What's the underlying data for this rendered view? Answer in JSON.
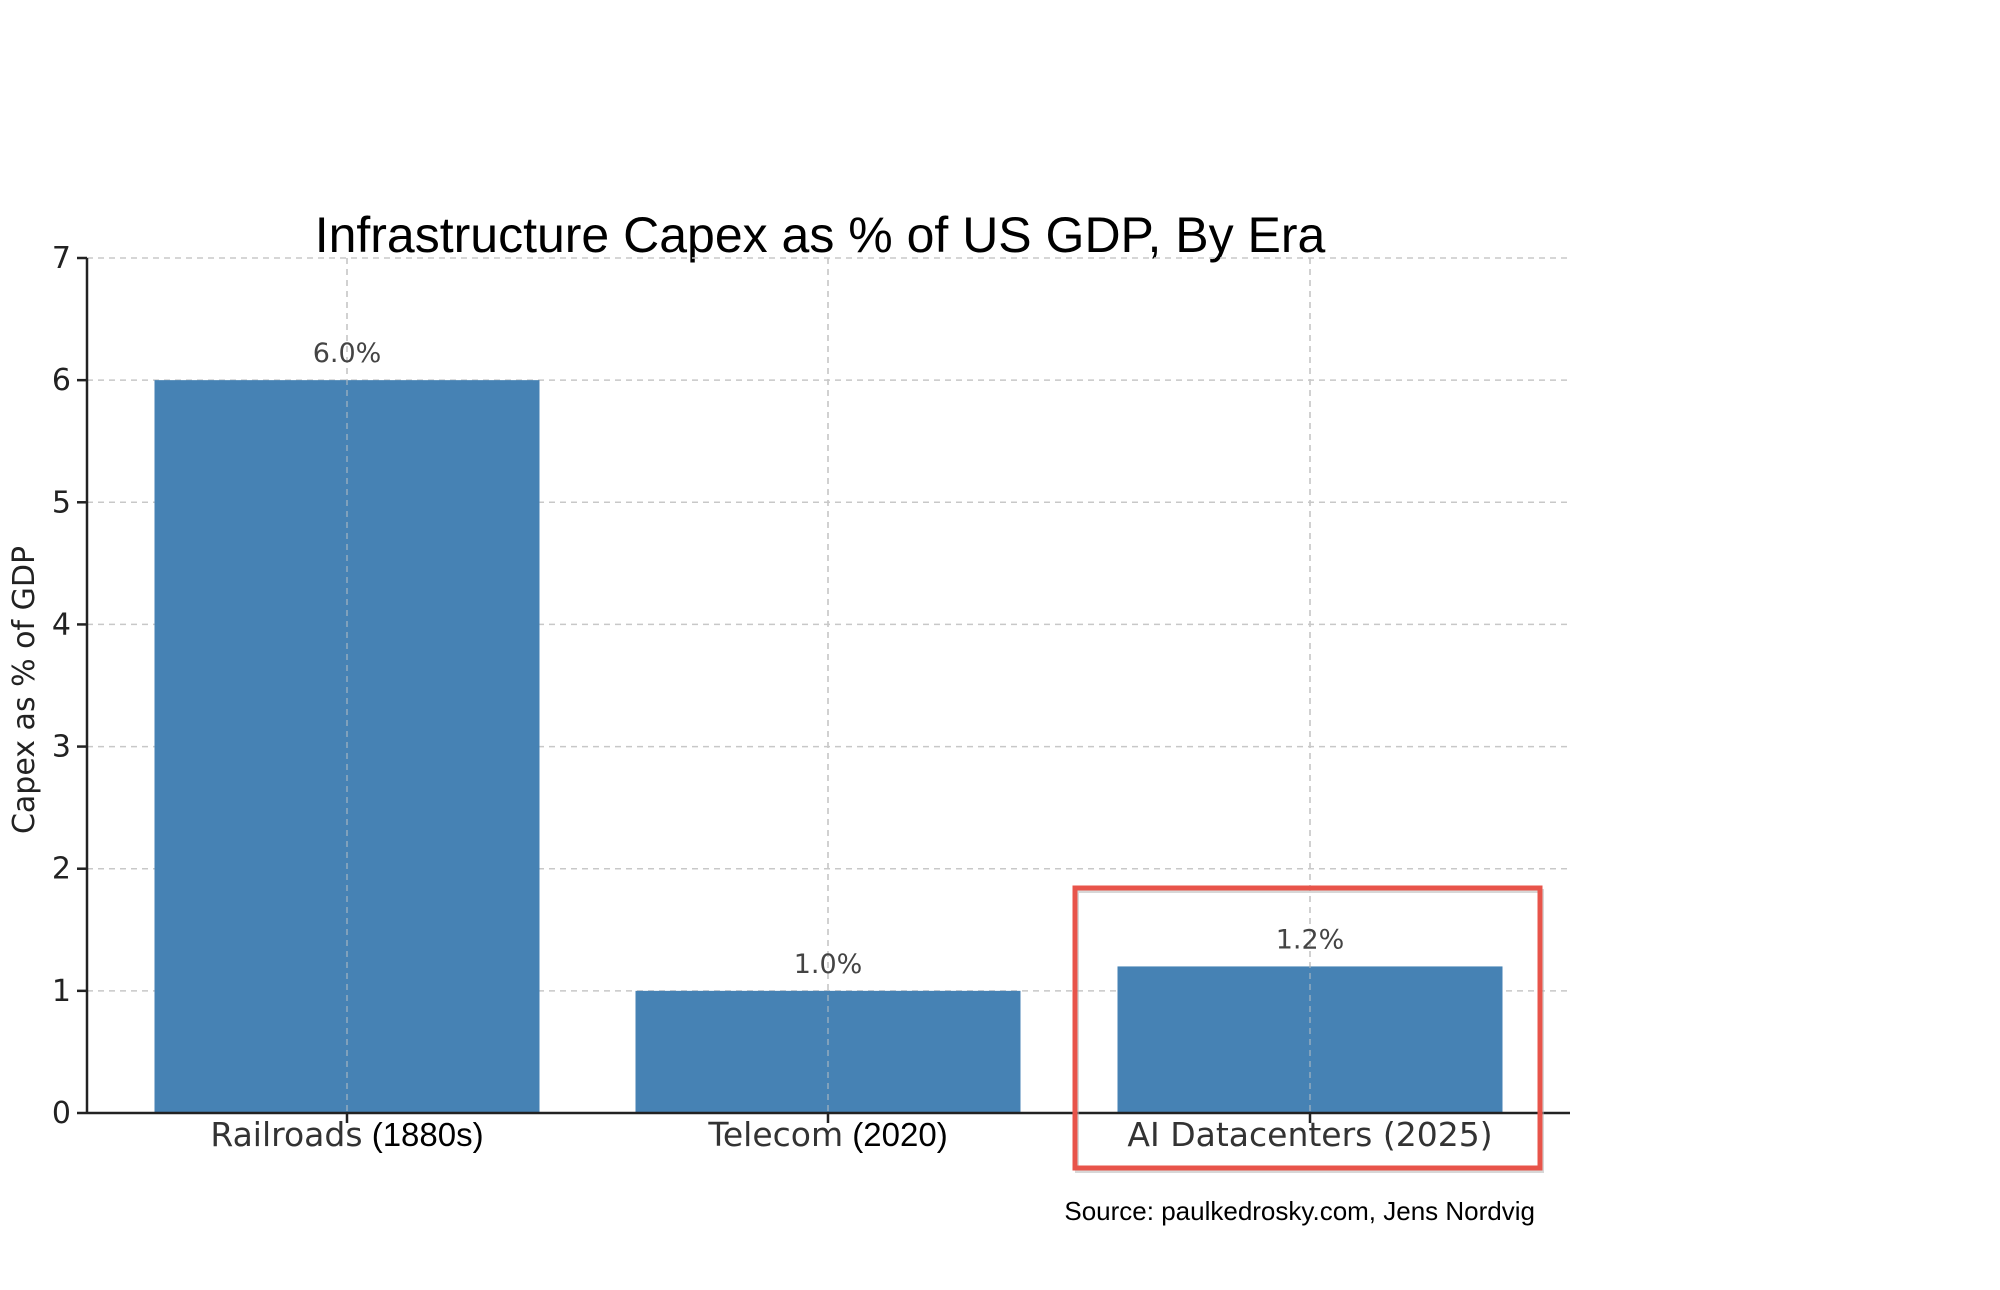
{
  "chart_data": {
    "type": "bar",
    "title": "Infrastructure Capex as % of US GDP, By Era",
    "ylabel": "Capex as % of GDP",
    "xlabel": "",
    "categories": [
      {
        "label": "Railroads",
        "year": "(1880s)"
      },
      {
        "label": "Telecom",
        "year": "(2020)"
      },
      {
        "label": "AI Datacenters (2025)",
        "year": ""
      }
    ],
    "values": [
      6.0,
      1.0,
      1.2
    ],
    "value_labels": [
      "6.0%",
      "1.0%",
      "1.2%"
    ],
    "ylim": [
      0,
      7
    ],
    "yticks": [
      "0",
      "1",
      "2",
      "3",
      "4",
      "5",
      "6",
      "7"
    ],
    "grid": true,
    "highlighted_category": "AI Datacenters (2025)",
    "source": "Source: paulkedrosky.com, Jens Nordvig",
    "colors": {
      "bar": "#4682b4",
      "highlight_box": "#e8544a"
    }
  }
}
